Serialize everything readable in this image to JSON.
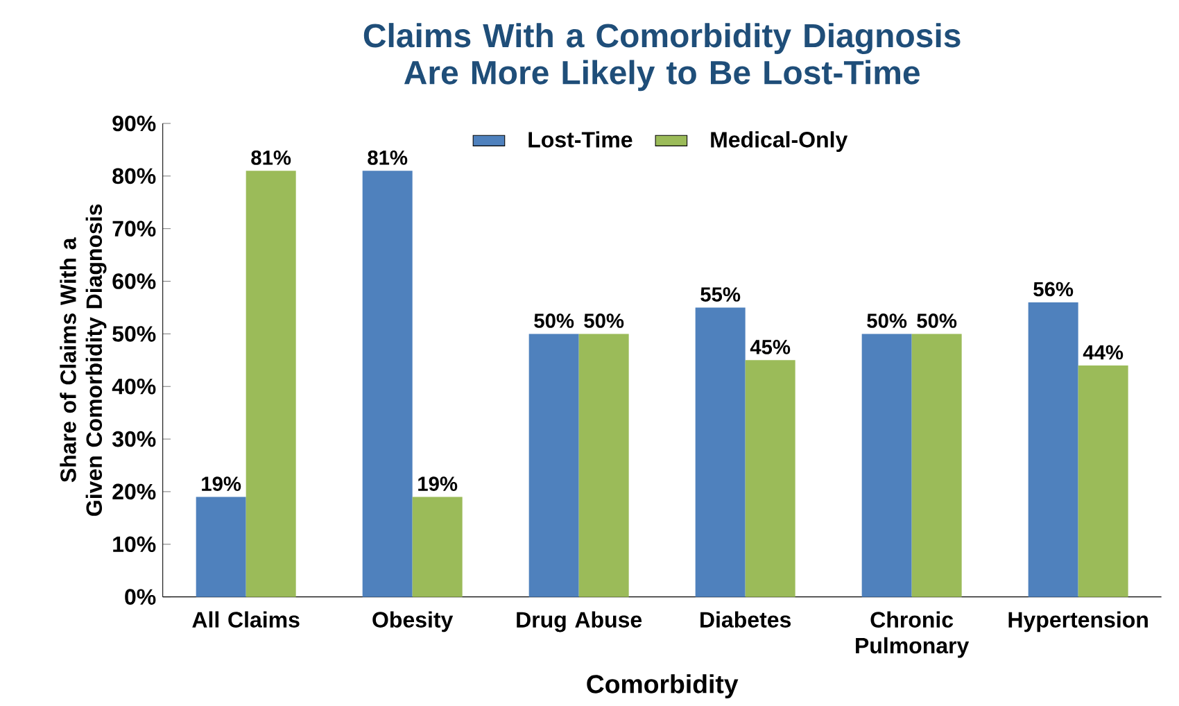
{
  "chart_data": {
    "type": "bar",
    "title": "Claims With a Comorbidity Diagnosis Are More Likely to Be Lost-Time",
    "xlabel": "Comorbidity",
    "ylabel": "Share of Claims With a Given Comorbidity Diagnosis",
    "categories": [
      "All Claims",
      "Obesity",
      "Drug Abuse",
      "Diabetes",
      "Chronic Pulmonary",
      "Hypertension"
    ],
    "series": [
      {
        "name": "Lost-Time",
        "color": "#4f81bd",
        "values": [
          19,
          81,
          50,
          55,
          50,
          56
        ],
        "value_labels": [
          "19%",
          "81%",
          "50%",
          "55%",
          "50%",
          "56%"
        ]
      },
      {
        "name": "Medical-Only",
        "color": "#9bbb59",
        "values": [
          81,
          19,
          50,
          45,
          50,
          44
        ],
        "value_labels": [
          "81%",
          "19%",
          "50%",
          "45%",
          "50%",
          "44%"
        ]
      }
    ],
    "ylim": [
      0,
      90
    ],
    "yticks": [
      {
        "value": 0,
        "label": "0%"
      },
      {
        "value": 10,
        "label": "10%"
      },
      {
        "value": 20,
        "label": "20%"
      },
      {
        "value": 30,
        "label": "30%"
      },
      {
        "value": 40,
        "label": "40%"
      },
      {
        "value": 50,
        "label": "50%"
      },
      {
        "value": 60,
        "label": "60%"
      },
      {
        "value": 70,
        "label": "70%"
      },
      {
        "value": 80,
        "label": "80%"
      },
      {
        "value": 90,
        "label": "90%"
      }
    ],
    "grid": false,
    "legend": "top"
  }
}
